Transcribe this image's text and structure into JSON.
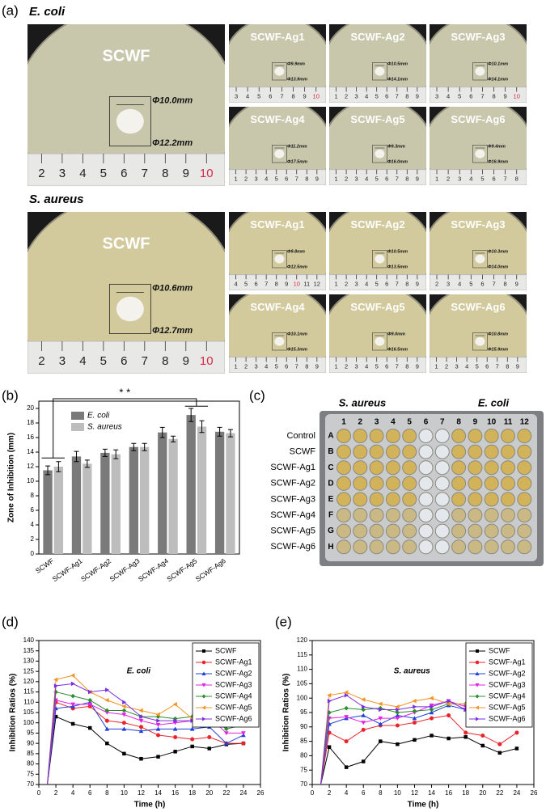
{
  "panels": [
    "(a)",
    "(b)",
    "(c)",
    "(d)",
    "(e)"
  ],
  "photos": [
    {
      "organism": "E. coli",
      "samples": [
        {
          "name": "SCWF",
          "inner": "Φ10.0mm",
          "outer": "Φ12.2mm",
          "ruler": [
            2,
            3,
            4,
            5,
            6,
            7,
            8,
            9,
            10
          ]
        },
        {
          "name": "SCWF-Ag1",
          "inner": "Φ9.9mm",
          "outer": "Φ13.9mm",
          "ruler": [
            3,
            4,
            5,
            6,
            7,
            8,
            9,
            10
          ]
        },
        {
          "name": "SCWF-Ag2",
          "inner": "Φ10.5mm",
          "outer": "Φ14.1mm",
          "ruler": [
            1,
            2,
            3,
            4,
            5,
            6,
            7,
            8,
            9
          ]
        },
        {
          "name": "SCWF-Ag3",
          "inner": "Φ10.1mm",
          "outer": "Φ14.1mm",
          "ruler": [
            3,
            4,
            5,
            6,
            7,
            8,
            9,
            10
          ]
        },
        {
          "name": "SCWF-Ag4",
          "inner": "Φ11.2mm",
          "outer": "Φ17.5mm",
          "ruler": [
            1,
            2,
            3,
            4,
            5,
            6,
            7,
            8,
            9
          ]
        },
        {
          "name": "SCWF-Ag5",
          "inner": "Φ9.3mm",
          "outer": "Φ16.0mm",
          "ruler": [
            1,
            2,
            3,
            4,
            5,
            6,
            7,
            8,
            9
          ]
        },
        {
          "name": "SCWF-Ag6",
          "inner": "Φ9.4mm",
          "outer": "Φ16.9mm",
          "ruler": [
            1,
            2,
            3,
            4,
            5,
            6,
            7,
            8
          ]
        }
      ]
    },
    {
      "organism": "S. aureus",
      "samples": [
        {
          "name": "SCWF",
          "inner": "Φ10.6mm",
          "outer": "Φ12.7mm",
          "ruler": [
            2,
            3,
            4,
            5,
            6,
            7,
            8,
            9,
            10
          ]
        },
        {
          "name": "SCWF-Ag1",
          "inner": "Φ9.8mm",
          "outer": "Φ12.5mm",
          "ruler": [
            4,
            5,
            6,
            7,
            8,
            9,
            10,
            11,
            12
          ]
        },
        {
          "name": "SCWF-Ag2",
          "inner": "Φ10.5mm",
          "outer": "Φ13.5mm",
          "ruler": [
            1,
            2,
            3,
            4,
            5,
            6,
            7,
            8,
            9
          ]
        },
        {
          "name": "SCWF-Ag3",
          "inner": "Φ10.3mm",
          "outer": "Φ14.0mm",
          "ruler": [
            2,
            3,
            4,
            5,
            6,
            7,
            8,
            9
          ]
        },
        {
          "name": "SCWF-Ag4",
          "inner": "Φ10.1mm",
          "outer": "Φ15.3mm",
          "ruler": [
            1,
            2,
            3,
            4,
            5,
            6,
            7,
            8,
            9
          ]
        },
        {
          "name": "SCWF-Ag5",
          "inner": "Φ9.0mm",
          "outer": "Φ16.5mm",
          "ruler": [
            1,
            2,
            3,
            4,
            5,
            6,
            7,
            8,
            9
          ]
        },
        {
          "name": "SCWF-Ag6",
          "inner": "Φ10.8mm",
          "outer": "Φ15.9mm",
          "ruler": [
            1,
            2,
            3,
            4,
            5,
            6,
            7,
            8,
            9
          ]
        }
      ]
    }
  ],
  "plate": {
    "groups": [
      "S. aureus",
      "E. coli"
    ],
    "columns": [
      1,
      2,
      3,
      4,
      5,
      6,
      7,
      8,
      9,
      10,
      11,
      12
    ],
    "row_letters": [
      "A",
      "B",
      "C",
      "D",
      "E",
      "F",
      "G",
      "H"
    ],
    "rows": [
      "Control",
      "SCWF",
      "SCWF-Ag1",
      "SCWF-Ag2",
      "SCWF-Ag3",
      "SCWF-Ag4",
      "SCWF-Ag5",
      "SCWF-Ag6"
    ]
  },
  "chart_data": [
    {
      "type": "bar",
      "ylabel": "Zone of Inhibition (mm)",
      "annotation": "* *",
      "categories": [
        "SCWF",
        "SCWF-Ag1",
        "SCWF-Ag2",
        "SCWF-Ag3",
        "SCWF-Ag4",
        "SCWF-Ag5",
        "SCWF-Ag6"
      ],
      "series": [
        {
          "name": "E. coli",
          "color": "#7a7a7a",
          "values": [
            11.5,
            13.4,
            13.9,
            14.7,
            16.7,
            19.1,
            16.8
          ],
          "errors": [
            0.6,
            0.7,
            0.5,
            0.5,
            0.7,
            0.9,
            0.6
          ]
        },
        {
          "name": "S. aureus",
          "color": "#bdbdbd",
          "values": [
            12.0,
            12.4,
            13.7,
            14.7,
            15.8,
            17.5,
            16.6
          ],
          "errors": [
            0.7,
            0.5,
            0.6,
            0.5,
            0.4,
            0.8,
            0.5
          ]
        }
      ],
      "ylim": [
        0,
        21
      ],
      "yticks": [
        0,
        2,
        4,
        6,
        8,
        10,
        12,
        14,
        16,
        18,
        20
      ],
      "legend": "upper left"
    },
    {
      "type": "line",
      "annotation": "E. coli",
      "xlabel": "Time (h)",
      "ylabel": "Inhibition Ratios (%)",
      "x": [
        1,
        2,
        4,
        6,
        8,
        10,
        12,
        14,
        16,
        18,
        20,
        22,
        24
      ],
      "xlim": [
        0,
        26
      ],
      "xticks": [
        0,
        2,
        4,
        6,
        8,
        10,
        12,
        14,
        16,
        18,
        20,
        22,
        24,
        26
      ],
      "ylim": [
        70,
        140
      ],
      "yticks": [
        70,
        75,
        80,
        85,
        90,
        95,
        100,
        105,
        110,
        115,
        120,
        125,
        130,
        135,
        140
      ],
      "legend": "upper right",
      "series": [
        {
          "name": "SCWF",
          "color": "#000000",
          "marker": "square",
          "values": [
            70,
            103,
            99.5,
            97.5,
            90,
            85,
            82.5,
            83.5,
            86,
            88.5,
            87.5,
            89.5,
            90
          ]
        },
        {
          "name": "SCWF-Ag1",
          "color": "#e8252b",
          "marker": "circle",
          "values": [
            70,
            110,
            107,
            108,
            101,
            100,
            98,
            94,
            93,
            92,
            93,
            90,
            90
          ]
        },
        {
          "name": "SCWF-Ag2",
          "color": "#1f3fd6",
          "marker": "triangle-up",
          "values": [
            70,
            107,
            108,
            110,
            97,
            97,
            96,
            97,
            97,
            97,
            98,
            90,
            94
          ]
        },
        {
          "name": "SCWF-Ag3",
          "color": "#e520e5",
          "marker": "triangle-down",
          "values": [
            70,
            111,
            109,
            109,
            105,
            104,
            101,
            99,
            100,
            101,
            103,
            95,
            95
          ]
        },
        {
          "name": "SCWF-Ag4",
          "color": "#2e8b2e",
          "marker": "diamond",
          "values": [
            70,
            115,
            113,
            111,
            106,
            106,
            103,
            103,
            102,
            103,
            103,
            97,
            99
          ]
        },
        {
          "name": "SCWF-Ag5",
          "color": "#f39422",
          "marker": "triangle-left",
          "values": [
            70,
            121,
            123,
            115,
            111,
            108,
            106,
            104,
            109,
            102,
            102,
            104,
            104
          ]
        },
        {
          "name": "SCWF-Ag6",
          "color": "#7b2ee0",
          "marker": "triangle-right",
          "values": [
            70,
            118,
            119,
            115,
            116,
            110,
            103,
            101,
            101,
            101,
            100,
            101,
            100
          ]
        }
      ]
    },
    {
      "type": "line",
      "annotation": "S. aureus",
      "xlabel": "Time (h)",
      "ylabel": "Inhibition Ratios (%)",
      "x": [
        1,
        2,
        4,
        6,
        8,
        10,
        12,
        14,
        16,
        18,
        20,
        22,
        24
      ],
      "xlim": [
        0,
        26
      ],
      "xticks": [
        0,
        2,
        4,
        6,
        8,
        10,
        12,
        14,
        16,
        18,
        20,
        22,
        24,
        26
      ],
      "ylim": [
        70,
        120
      ],
      "yticks": [
        70,
        75,
        80,
        85,
        90,
        95,
        100,
        105,
        110,
        115,
        120
      ],
      "legend": "upper right",
      "series": [
        {
          "name": "SCWF",
          "color": "#000000",
          "marker": "square",
          "values": [
            70,
            83,
            76,
            78,
            85,
            84,
            85.5,
            87,
            86,
            86.5,
            83.5,
            81,
            82.5
          ]
        },
        {
          "name": "SCWF-Ag1",
          "color": "#e8252b",
          "marker": "circle",
          "values": [
            70,
            88,
            85,
            89,
            90.5,
            90.5,
            91.5,
            93,
            94,
            88,
            87,
            84,
            88
          ]
        },
        {
          "name": "SCWF-Ag2",
          "color": "#1f3fd6",
          "marker": "triangle-up",
          "values": [
            70,
            91,
            93,
            94,
            91,
            94,
            93,
            95,
            97.5,
            96,
            95,
            91,
            92.5
          ]
        },
        {
          "name": "SCWF-Ag3",
          "color": "#e520e5",
          "marker": "triangle-down",
          "values": [
            70,
            93,
            93.5,
            91.5,
            93,
            93,
            95,
            97.5,
            99,
            97,
            94,
            93,
            91
          ]
        },
        {
          "name": "SCWF-Ag4",
          "color": "#2e8b2e",
          "marker": "diamond",
          "values": [
            70,
            95,
            96.5,
            96,
            96.5,
            95,
            95.5,
            96,
            98,
            98,
            96.5,
            93.5,
            94
          ]
        },
        {
          "name": "SCWF-Ag5",
          "color": "#f39422",
          "marker": "triangle-left",
          "values": [
            70,
            101,
            102,
            99.5,
            98,
            97,
            99,
            100,
            98,
            98,
            95,
            95,
            98.5
          ]
        },
        {
          "name": "SCWF-Ag6",
          "color": "#7b2ee0",
          "marker": "triangle-right",
          "values": [
            70,
            99,
            101,
            97,
            96,
            96,
            97,
            97,
            99,
            96,
            96,
            97,
            97
          ]
        }
      ]
    }
  ]
}
